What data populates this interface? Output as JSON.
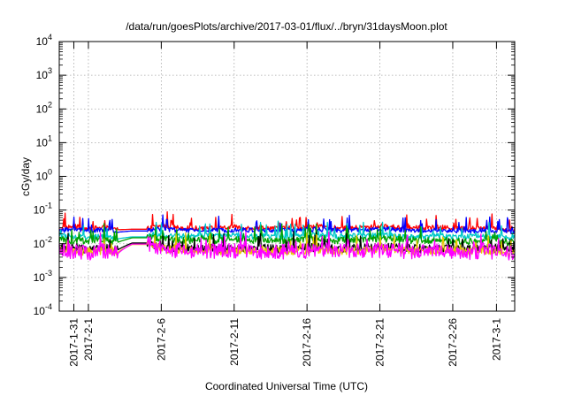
{
  "chart_data": {
    "type": "line",
    "title": "/data/run/goesPlots/archive/2017-03-01/flux/../bryn/31daysMoon.plot",
    "xlabel": "Coordinated Universal Time (UTC)",
    "ylabel": "cGy/day",
    "yscale": "log",
    "ylim": [
      0.0001,
      10000
    ],
    "xlim": [
      "2017-01-30",
      "2017-03-02T06:00"
    ],
    "grid": true,
    "y_ticks": [
      {
        "value": 0.0001,
        "base": "10",
        "exp": "-4"
      },
      {
        "value": 0.001,
        "base": "10",
        "exp": "-3"
      },
      {
        "value": 0.01,
        "base": "10",
        "exp": "-2"
      },
      {
        "value": 0.1,
        "base": "10",
        "exp": "-1"
      },
      {
        "value": 1,
        "base": "10",
        "exp": "0"
      },
      {
        "value": 10,
        "base": "10",
        "exp": "1"
      },
      {
        "value": 100,
        "base": "10",
        "exp": "2"
      },
      {
        "value": 1000,
        "base": "10",
        "exp": "3"
      },
      {
        "value": 10000,
        "base": "10",
        "exp": "4"
      }
    ],
    "x_ticks": [
      {
        "date": "2017-01-31",
        "label": "2017-1-31"
      },
      {
        "date": "2017-02-01",
        "label": "2017-2-1"
      },
      {
        "date": "2017-02-06",
        "label": "2017-2-6"
      },
      {
        "date": "2017-02-11",
        "label": "2017-2-11"
      },
      {
        "date": "2017-02-16",
        "label": "2017-2-16"
      },
      {
        "date": "2017-02-21",
        "label": "2017-2-21"
      },
      {
        "date": "2017-02-26",
        "label": "2017-2-26"
      },
      {
        "date": "2017-03-01",
        "label": "2017-3-1"
      }
    ],
    "series": [
      {
        "color": "#ff0000",
        "baseline": 0.028,
        "amplitude": 0.14,
        "values": [
          [
            "2017-01-30",
            0.028
          ],
          [
            "2017-01-31",
            0.032
          ],
          [
            "2017-02-01",
            0.027
          ],
          [
            "2017-02-02",
            0.03
          ],
          [
            "2017-02-03",
            0.026
          ],
          [
            "2017-02-04",
            0.027
          ],
          [
            "2017-02-05",
            0.027
          ],
          [
            "2017-02-06",
            0.034
          ],
          [
            "2017-02-07",
            0.03
          ],
          [
            "2017-02-08",
            0.028
          ],
          [
            "2017-02-09",
            0.029
          ],
          [
            "2017-02-10",
            0.028
          ],
          [
            "2017-02-11",
            0.031
          ],
          [
            "2017-02-12",
            0.029
          ],
          [
            "2017-02-13",
            0.03
          ],
          [
            "2017-02-14",
            0.028
          ],
          [
            "2017-02-15",
            0.029
          ],
          [
            "2017-02-16",
            0.03
          ],
          [
            "2017-02-17",
            0.031
          ],
          [
            "2017-02-18",
            0.028
          ],
          [
            "2017-02-19",
            0.029
          ],
          [
            "2017-02-20",
            0.03
          ],
          [
            "2017-02-21",
            0.032
          ],
          [
            "2017-02-22",
            0.031
          ],
          [
            "2017-02-23",
            0.029
          ],
          [
            "2017-02-24",
            0.028
          ],
          [
            "2017-02-25",
            0.03
          ],
          [
            "2017-02-26",
            0.029
          ],
          [
            "2017-02-27",
            0.027
          ],
          [
            "2017-02-28",
            0.03
          ],
          [
            "2017-03-01",
            0.028
          ],
          [
            "2017-03-02",
            0.025
          ]
        ]
      },
      {
        "color": "#0000ff",
        "baseline": 0.024,
        "amplitude": 0.14,
        "values": [
          [
            "2017-01-30",
            0.024
          ],
          [
            "2017-01-31",
            0.027
          ],
          [
            "2017-02-01",
            0.023
          ],
          [
            "2017-02-02",
            0.025
          ],
          [
            "2017-02-03",
            0.022
          ],
          [
            "2017-02-04",
            0.024
          ],
          [
            "2017-02-05",
            0.024
          ],
          [
            "2017-02-06",
            0.028
          ],
          [
            "2017-02-07",
            0.025
          ],
          [
            "2017-02-08",
            0.024
          ],
          [
            "2017-02-09",
            0.025
          ],
          [
            "2017-02-10",
            0.024
          ],
          [
            "2017-02-11",
            0.026
          ],
          [
            "2017-02-12",
            0.025
          ],
          [
            "2017-02-13",
            0.025
          ],
          [
            "2017-02-14",
            0.024
          ],
          [
            "2017-02-15",
            0.025
          ],
          [
            "2017-02-16",
            0.026
          ],
          [
            "2017-02-17",
            0.026
          ],
          [
            "2017-02-18",
            0.024
          ],
          [
            "2017-02-19",
            0.025
          ],
          [
            "2017-02-20",
            0.025
          ],
          [
            "2017-02-21",
            0.027
          ],
          [
            "2017-02-22",
            0.026
          ],
          [
            "2017-02-23",
            0.025
          ],
          [
            "2017-02-24",
            0.024
          ],
          [
            "2017-02-25",
            0.025
          ],
          [
            "2017-02-26",
            0.024
          ],
          [
            "2017-02-27",
            0.023
          ],
          [
            "2017-02-28",
            0.025
          ],
          [
            "2017-03-01",
            0.024
          ],
          [
            "2017-03-02",
            0.022
          ]
        ]
      },
      {
        "color": "#00c8c8",
        "baseline": 0.017,
        "amplitude": 0.16,
        "values": [
          [
            "2017-01-30",
            0.017
          ],
          [
            "2017-01-31",
            0.016
          ],
          [
            "2017-02-01",
            0.015
          ],
          [
            "2017-02-02",
            0.016
          ],
          [
            "2017-02-03",
            0.014
          ],
          [
            "2017-02-04",
            0.016
          ],
          [
            "2017-02-05",
            0.016
          ],
          [
            "2017-02-06",
            0.018
          ],
          [
            "2017-02-07",
            0.017
          ],
          [
            "2017-02-08",
            0.016
          ],
          [
            "2017-02-09",
            0.017
          ],
          [
            "2017-02-10",
            0.016
          ],
          [
            "2017-02-11",
            0.017
          ],
          [
            "2017-02-12",
            0.016
          ],
          [
            "2017-02-13",
            0.017
          ],
          [
            "2017-02-14",
            0.016
          ],
          [
            "2017-02-15",
            0.016
          ],
          [
            "2017-02-16",
            0.017
          ],
          [
            "2017-02-17",
            0.018
          ],
          [
            "2017-02-18",
            0.016
          ],
          [
            "2017-02-19",
            0.017
          ],
          [
            "2017-02-20",
            0.017
          ],
          [
            "2017-02-21",
            0.018
          ],
          [
            "2017-02-22",
            0.017
          ],
          [
            "2017-02-23",
            0.016
          ],
          [
            "2017-02-24",
            0.016
          ],
          [
            "2017-02-25",
            0.017
          ],
          [
            "2017-02-26",
            0.016
          ],
          [
            "2017-02-27",
            0.016
          ],
          [
            "2017-02-28",
            0.017
          ],
          [
            "2017-03-01",
            0.016
          ],
          [
            "2017-03-02",
            0.015
          ]
        ]
      },
      {
        "color": "#00a000",
        "baseline": 0.013,
        "amplitude": 0.2,
        "values": [
          [
            "2017-01-30",
            0.013
          ],
          [
            "2017-01-31",
            0.012
          ],
          [
            "2017-02-01",
            0.012
          ],
          [
            "2017-02-02",
            0.013
          ],
          [
            "2017-02-03",
            0.011
          ],
          [
            "2017-02-04",
            0.015
          ],
          [
            "2017-02-05",
            0.015
          ],
          [
            "2017-02-06",
            0.014
          ],
          [
            "2017-02-07",
            0.013
          ],
          [
            "2017-02-08",
            0.012
          ],
          [
            "2017-02-09",
            0.013
          ],
          [
            "2017-02-10",
            0.012
          ],
          [
            "2017-02-11",
            0.013
          ],
          [
            "2017-02-12",
            0.012
          ],
          [
            "2017-02-13",
            0.013
          ],
          [
            "2017-02-14",
            0.012
          ],
          [
            "2017-02-15",
            0.012
          ],
          [
            "2017-02-16",
            0.013
          ],
          [
            "2017-02-17",
            0.014
          ],
          [
            "2017-02-18",
            0.012
          ],
          [
            "2017-02-19",
            0.013
          ],
          [
            "2017-02-20",
            0.013
          ],
          [
            "2017-02-21",
            0.014
          ],
          [
            "2017-02-22",
            0.013
          ],
          [
            "2017-02-23",
            0.012
          ],
          [
            "2017-02-24",
            0.012
          ],
          [
            "2017-02-25",
            0.013
          ],
          [
            "2017-02-26",
            0.012
          ],
          [
            "2017-02-27",
            0.011
          ],
          [
            "2017-02-28",
            0.013
          ],
          [
            "2017-03-01",
            0.012
          ],
          [
            "2017-03-02",
            0.011
          ]
        ]
      },
      {
        "color": "#000000",
        "baseline": 0.0075,
        "amplitude": 0.25,
        "values": [
          [
            "2017-01-30",
            0.0075
          ],
          [
            "2017-01-31",
            0.007
          ],
          [
            "2017-02-01",
            0.0068
          ],
          [
            "2017-02-02",
            0.0072
          ],
          [
            "2017-02-03",
            0.0065
          ],
          [
            "2017-02-04",
            0.0105
          ],
          [
            "2017-02-05",
            0.0105
          ],
          [
            "2017-02-06",
            0.008
          ],
          [
            "2017-02-07",
            0.0075
          ],
          [
            "2017-02-08",
            0.007
          ],
          [
            "2017-02-09",
            0.0073
          ],
          [
            "2017-02-10",
            0.007
          ],
          [
            "2017-02-11",
            0.0074
          ],
          [
            "2017-02-12",
            0.007
          ],
          [
            "2017-02-13",
            0.0072
          ],
          [
            "2017-02-14",
            0.0068
          ],
          [
            "2017-02-15",
            0.007
          ],
          [
            "2017-02-16",
            0.0073
          ],
          [
            "2017-02-17",
            0.0078
          ],
          [
            "2017-02-18",
            0.007
          ],
          [
            "2017-02-19",
            0.0072
          ],
          [
            "2017-02-20",
            0.0073
          ],
          [
            "2017-02-21",
            0.0078
          ],
          [
            "2017-02-22",
            0.0075
          ],
          [
            "2017-02-23",
            0.007
          ],
          [
            "2017-02-24",
            0.0068
          ],
          [
            "2017-02-25",
            0.0072
          ],
          [
            "2017-02-26",
            0.007
          ],
          [
            "2017-02-27",
            0.0065
          ],
          [
            "2017-02-28",
            0.0072
          ],
          [
            "2017-03-01",
            0.007
          ],
          [
            "2017-03-02",
            0.0065
          ]
        ]
      },
      {
        "color": "#e6c800",
        "baseline": 0.0065,
        "amplitude": 0.25,
        "values": [
          [
            "2017-01-30",
            0.0065
          ],
          [
            "2017-01-31",
            0.006
          ],
          [
            "2017-02-01",
            0.0058
          ],
          [
            "2017-02-02",
            0.0062
          ],
          [
            "2017-02-03",
            0.0055
          ],
          [
            "2017-02-04",
            0.0095
          ],
          [
            "2017-02-05",
            0.0095
          ],
          [
            "2017-02-06",
            0.007
          ],
          [
            "2017-02-07",
            0.0065
          ],
          [
            "2017-02-08",
            0.006
          ],
          [
            "2017-02-09",
            0.0063
          ],
          [
            "2017-02-10",
            0.006
          ],
          [
            "2017-02-11",
            0.0064
          ],
          [
            "2017-02-12",
            0.006
          ],
          [
            "2017-02-13",
            0.0062
          ],
          [
            "2017-02-14",
            0.0058
          ],
          [
            "2017-02-15",
            0.006
          ],
          [
            "2017-02-16",
            0.0063
          ],
          [
            "2017-02-17",
            0.0068
          ],
          [
            "2017-02-18",
            0.006
          ],
          [
            "2017-02-19",
            0.0062
          ],
          [
            "2017-02-20",
            0.0063
          ],
          [
            "2017-02-21",
            0.0068
          ],
          [
            "2017-02-22",
            0.0065
          ],
          [
            "2017-02-23",
            0.006
          ],
          [
            "2017-02-24",
            0.0058
          ],
          [
            "2017-02-25",
            0.0062
          ],
          [
            "2017-02-26",
            0.006
          ],
          [
            "2017-02-27",
            0.0055
          ],
          [
            "2017-02-28",
            0.0062
          ],
          [
            "2017-03-01",
            0.006
          ],
          [
            "2017-03-02",
            0.0055
          ]
        ]
      },
      {
        "color": "#ff00ff",
        "baseline": 0.006,
        "amplitude": 0.45,
        "values": [
          [
            "2017-01-30",
            0.006
          ],
          [
            "2017-01-31",
            0.0055
          ],
          [
            "2017-02-01",
            0.0052
          ],
          [
            "2017-02-02",
            0.0058
          ],
          [
            "2017-02-03",
            0.005
          ],
          [
            "2017-02-04",
            0.0098
          ],
          [
            "2017-02-05",
            0.0098
          ],
          [
            "2017-02-06",
            0.0065
          ],
          [
            "2017-02-07",
            0.006
          ],
          [
            "2017-02-08",
            0.0055
          ],
          [
            "2017-02-09",
            0.0058
          ],
          [
            "2017-02-10",
            0.0055
          ],
          [
            "2017-02-11",
            0.0059
          ],
          [
            "2017-02-12",
            0.0055
          ],
          [
            "2017-02-13",
            0.0057
          ],
          [
            "2017-02-14",
            0.0053
          ],
          [
            "2017-02-15",
            0.0055
          ],
          [
            "2017-02-16",
            0.0058
          ],
          [
            "2017-02-17",
            0.0063
          ],
          [
            "2017-02-18",
            0.0055
          ],
          [
            "2017-02-19",
            0.0057
          ],
          [
            "2017-02-20",
            0.0058
          ],
          [
            "2017-02-21",
            0.0063
          ],
          [
            "2017-02-22",
            0.006
          ],
          [
            "2017-02-23",
            0.0055
          ],
          [
            "2017-02-24",
            0.0053
          ],
          [
            "2017-02-25",
            0.0057
          ],
          [
            "2017-02-26",
            0.0055
          ],
          [
            "2017-02-27",
            0.005
          ],
          [
            "2017-02-28",
            0.0057
          ],
          [
            "2017-03-01",
            0.0055
          ],
          [
            "2017-03-02",
            0.005
          ]
        ]
      }
    ]
  }
}
